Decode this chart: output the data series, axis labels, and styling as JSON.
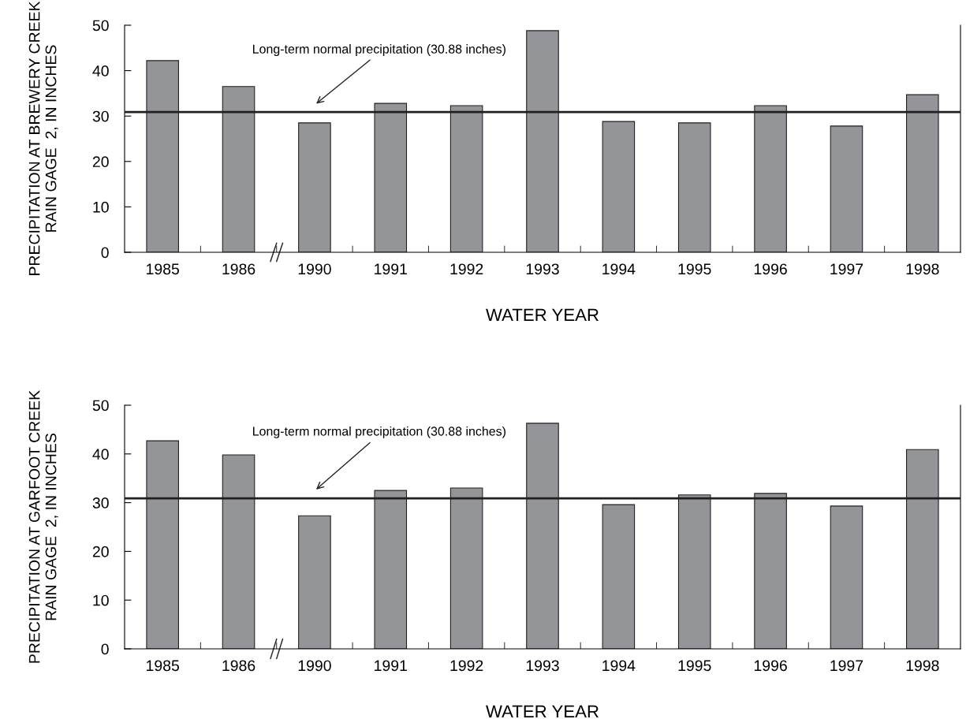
{
  "chart_data": [
    {
      "type": "bar",
      "categories": [
        "1985",
        "1986",
        "1990",
        "1991",
        "1992",
        "1993",
        "1994",
        "1995",
        "1996",
        "1997",
        "1998"
      ],
      "values": [
        42.2,
        36.5,
        28.5,
        32.8,
        32.3,
        48.8,
        28.8,
        28.5,
        32.3,
        27.8,
        34.7
      ],
      "color": "#939598",
      "ylim": [
        0,
        50
      ],
      "yticks": [
        0,
        10,
        20,
        30,
        40,
        50
      ],
      "xlabel": "WATER YEAR",
      "ylabel": "PRECIPITATION AT BREWERY CREEK\nRAIN GAGE  2, IN INCHES",
      "ref_lines": [
        {
          "axis": "y",
          "value": 30.88,
          "color": "#231f20",
          "line_style": "solid"
        }
      ],
      "annotations": [
        "Long-term normal precipitation (30.88 inches)"
      ],
      "grid": false,
      "legend": false
    },
    {
      "type": "bar",
      "categories": [
        "1985",
        "1986",
        "1990",
        "1991",
        "1992",
        "1993",
        "1994",
        "1995",
        "1996",
        "1997",
        "1998"
      ],
      "values": [
        42.7,
        39.8,
        27.3,
        32.5,
        33.0,
        46.3,
        29.6,
        31.6,
        31.9,
        29.3,
        40.9
      ],
      "color": "#939598",
      "ylim": [
        0,
        50
      ],
      "yticks": [
        0,
        10,
        20,
        30,
        40,
        50
      ],
      "xlabel": "WATER YEAR",
      "ylabel": "PRECIPITATION AT GARFOOT CREEK\nRAIN GAGE  2, IN INCHES",
      "ref_lines": [
        {
          "axis": "y",
          "value": 30.88,
          "color": "#231f20",
          "line_style": "solid"
        }
      ],
      "annotations": [
        "Long-term normal precipitation (30.88 inches)"
      ],
      "grid": false,
      "legend": false
    }
  ]
}
